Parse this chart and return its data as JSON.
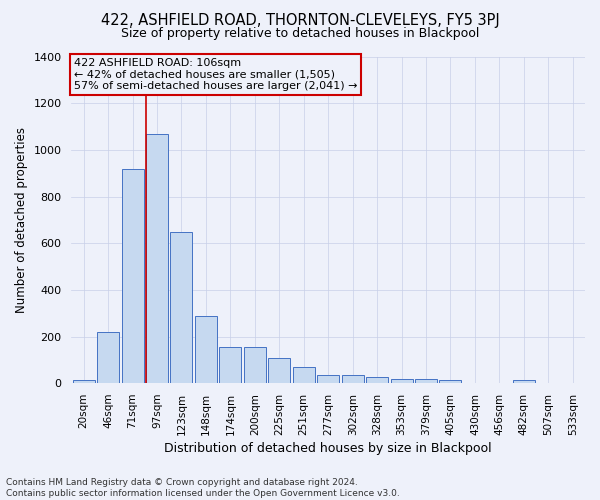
{
  "title": "422, ASHFIELD ROAD, THORNTON-CLEVELEYS, FY5 3PJ",
  "subtitle": "Size of property relative to detached houses in Blackpool",
  "xlabel": "Distribution of detached houses by size in Blackpool",
  "ylabel": "Number of detached properties",
  "footer_line1": "Contains HM Land Registry data © Crown copyright and database right 2024.",
  "footer_line2": "Contains public sector information licensed under the Open Government Licence v3.0.",
  "annotation_line1": "422 ASHFIELD ROAD: 106sqm",
  "annotation_line2": "← 42% of detached houses are smaller (1,505)",
  "annotation_line3": "57% of semi-detached houses are larger (2,041) →",
  "bar_labels": [
    "20sqm",
    "46sqm",
    "71sqm",
    "97sqm",
    "123sqm",
    "148sqm",
    "174sqm",
    "200sqm",
    "225sqm",
    "251sqm",
    "277sqm",
    "302sqm",
    "328sqm",
    "353sqm",
    "379sqm",
    "405sqm",
    "430sqm",
    "456sqm",
    "482sqm",
    "507sqm",
    "533sqm"
  ],
  "bar_values": [
    15,
    220,
    920,
    1070,
    650,
    290,
    155,
    155,
    110,
    70,
    35,
    35,
    25,
    20,
    20,
    15,
    0,
    0,
    15,
    0,
    0
  ],
  "bar_color": "#c6d9f0",
  "bar_edge_color": "#4472c4",
  "ylim": [
    0,
    1400
  ],
  "yticks": [
    0,
    200,
    400,
    600,
    800,
    1000,
    1200,
    1400
  ],
  "red_line_color": "#cc0000",
  "annotation_box_color": "#cc0000",
  "bg_color": "#eef1fa",
  "grid_color": "#c8cfe8",
  "title_fontsize": 10.5,
  "subtitle_fontsize": 9,
  "ylabel_fontsize": 8.5,
  "xlabel_fontsize": 9,
  "tick_fontsize": 7.5,
  "annotation_fontsize": 8,
  "footer_fontsize": 6.5,
  "red_line_bin": 3
}
